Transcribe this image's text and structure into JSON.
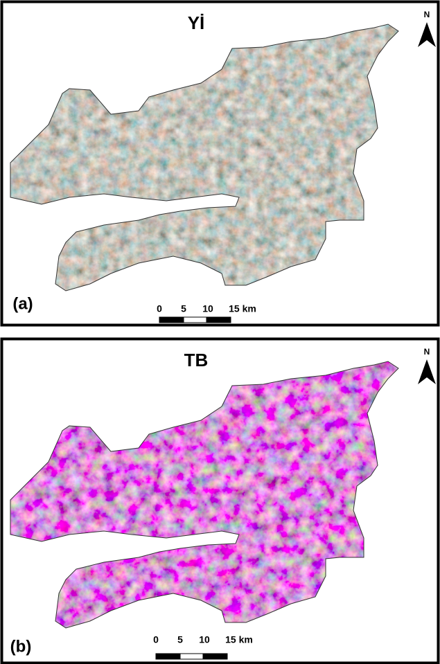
{
  "panels": [
    {
      "title": "Yİ",
      "label": "(a)",
      "north": "N",
      "scale_labels": [
        "0",
        "5",
        "10",
        "15 km"
      ]
    },
    {
      "title": "TB",
      "label": "(b)",
      "north": "N",
      "scale_labels": [
        "0",
        "5",
        "10",
        "15 km"
      ]
    }
  ]
}
